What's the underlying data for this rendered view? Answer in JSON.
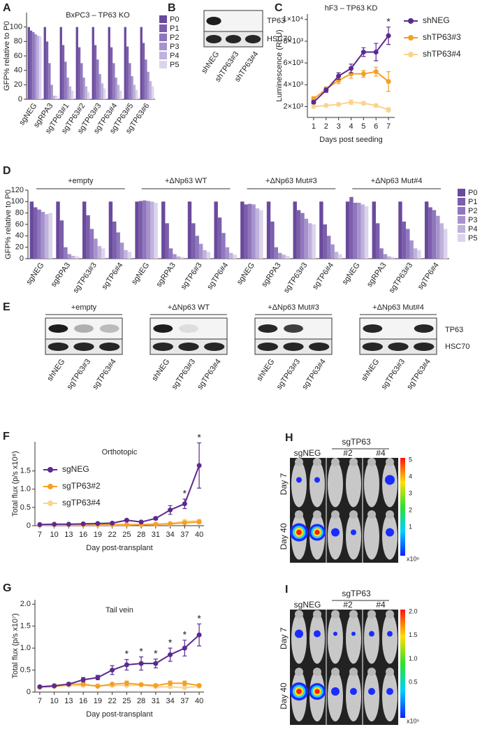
{
  "chart_data": [
    {
      "type": "bar",
      "panel": "A",
      "title": "BxPC3 – TP63 KO",
      "y_label": "GFP% relative to P0",
      "categories": [
        "sgNEG",
        "sgRPA3",
        "sgTP63#1",
        "sgTP63#2",
        "sgTP63#3",
        "sgTP63#4",
        "sgTP63#5",
        "sgTP63#6"
      ],
      "series": [
        {
          "name": "P0",
          "color": "#6a4a9c",
          "values": [
            100,
            100,
            100,
            100,
            100,
            100,
            100,
            100
          ]
        },
        {
          "name": "P1",
          "color": "#7b5eac",
          "values": [
            95,
            80,
            75,
            72,
            75,
            72,
            73,
            78
          ]
        },
        {
          "name": "P2",
          "color": "#8f76bd",
          "values": [
            93,
            50,
            52,
            50,
            55,
            50,
            50,
            55
          ]
        },
        {
          "name": "P3",
          "color": "#a693cc",
          "values": [
            90,
            20,
            30,
            30,
            35,
            30,
            32,
            38
          ]
        },
        {
          "name": "P4",
          "color": "#c0b2dc",
          "values": [
            88,
            5,
            18,
            18,
            22,
            20,
            20,
            25
          ]
        },
        {
          "name": "P5",
          "color": "#dcd4ec",
          "values": [
            87,
            5,
            12,
            10,
            15,
            12,
            13,
            18
          ]
        }
      ],
      "ylim": [
        0,
        120
      ],
      "yticks": [
        0,
        20,
        40,
        60,
        80,
        100
      ],
      "legend": "outside right"
    },
    {
      "type": "line",
      "panel": "C",
      "title": "hF3 – TP63 KD",
      "x_label": "Days post seeding",
      "y_label": "Luminescence (RLU)",
      "x": [
        1,
        2,
        3,
        4,
        5,
        6,
        7
      ],
      "series": [
        {
          "name": "shNEG",
          "color": "#5b2a91",
          "values": [
            2400,
            3500,
            4800,
            5500,
            7000,
            7000,
            8500
          ],
          "errors": [
            150,
            200,
            300,
            400,
            400,
            800,
            800
          ]
        },
        {
          "name": "shTP63#3",
          "color": "#f5a024",
          "values": [
            2700,
            3600,
            4400,
            5000,
            5000,
            5200,
            4300
          ],
          "errors": [
            200,
            200,
            300,
            400,
            300,
            400,
            900
          ]
        },
        {
          "name": "shTP63#4",
          "color": "#fbd38d",
          "values": [
            2000,
            2100,
            2200,
            2400,
            2300,
            2100,
            1700
          ],
          "errors": [
            100,
            150,
            150,
            200,
            150,
            150,
            200
          ]
        }
      ],
      "xlim": [
        0.5,
        7.5
      ],
      "xticks": [
        1,
        2,
        3,
        4,
        5,
        6,
        7
      ],
      "ylim": [
        1000,
        10500
      ],
      "yticks": [
        {
          "value": 2000,
          "label": "2×10³"
        },
        {
          "value": 4000,
          "label": "4×10³"
        },
        {
          "value": 6000,
          "label": "6×10³"
        },
        {
          "value": 8000,
          "label": "8×10³"
        },
        {
          "value": 10000,
          "label": "1×10⁴"
        }
      ],
      "annotations": [
        {
          "text": "*",
          "x": 7
        }
      ],
      "legend": "outside right"
    },
    {
      "type": "bar",
      "panel": "D",
      "y_label": "GFP% relative to P0",
      "groups": [
        "+empty",
        "+ΔNp63 WT",
        "+ΔNp63 Mut#3",
        "+ΔNp63 Mut#4"
      ],
      "categories": [
        "sgNEG",
        "sgRPA3",
        "sgTP63#3",
        "sgTP6#4",
        "sgNEG",
        "sgRPA3",
        "sgTP6#3",
        "sgTP6#4",
        "sgNEG",
        "sgRPA3",
        "sgTP63#3",
        "sgTP6#4",
        "sgNEG",
        "sgRPA3",
        "sgTP63#3",
        "sgTP6#4"
      ],
      "series": [
        {
          "name": "P0",
          "color": "#6a4a9c",
          "values": [
            100,
            100,
            100,
            100,
            100,
            100,
            100,
            100,
            100,
            100,
            100,
            100,
            100,
            100,
            100,
            100
          ]
        },
        {
          "name": "P1",
          "color": "#7b5eac",
          "values": [
            90,
            67,
            76,
            65,
            101,
            62,
            62,
            72,
            95,
            65,
            85,
            60,
            108,
            62,
            65,
            90
          ]
        },
        {
          "name": "P2",
          "color": "#8f76bd",
          "values": [
            86,
            20,
            52,
            46,
            102,
            18,
            40,
            45,
            96,
            20,
            80,
            40,
            98,
            18,
            52,
            85
          ]
        },
        {
          "name": "P3",
          "color": "#a693cc",
          "values": [
            82,
            8,
            35,
            28,
            101,
            8,
            26,
            20,
            95,
            10,
            70,
            25,
            98,
            8,
            32,
            75
          ]
        },
        {
          "name": "P4",
          "color": "#c0b2dc",
          "values": [
            78,
            5,
            22,
            15,
            100,
            4,
            15,
            10,
            88,
            7,
            62,
            12,
            95,
            4,
            18,
            62
          ]
        },
        {
          "name": "P5",
          "color": "#dcd4ec",
          "values": [
            80,
            4,
            18,
            12,
            98,
            3,
            12,
            7,
            85,
            5,
            60,
            8,
            92,
            3,
            15,
            52
          ]
        }
      ],
      "ylim": [
        0,
        120
      ],
      "yticks": [
        0,
        20,
        40,
        60,
        80,
        100,
        120
      ],
      "legend": "outside right"
    },
    {
      "type": "line",
      "panel": "F",
      "title": "Orthotopic",
      "x_label": "Day post-transplant",
      "y_label": "Total flux (p/s x10⁸)",
      "x": [
        7,
        10,
        13,
        16,
        19,
        22,
        25,
        28,
        31,
        34,
        37,
        40
      ],
      "series": [
        {
          "name": "sgNEG",
          "color": "#5b2a91",
          "values": [
            0.03,
            0.04,
            0.04,
            0.05,
            0.06,
            0.07,
            0.15,
            0.1,
            0.2,
            0.43,
            0.6,
            1.65
          ],
          "errors": [
            0.01,
            0.01,
            0.01,
            0.01,
            0.01,
            0.02,
            0.03,
            0.02,
            0.04,
            0.12,
            0.13,
            0.62
          ]
        },
        {
          "name": "sgTP63#2",
          "color": "#f5a024",
          "values": [
            0.02,
            0.03,
            0.03,
            0.03,
            0.03,
            0.03,
            0.03,
            0.03,
            0.04,
            0.05,
            0.08,
            0.1
          ],
          "errors": [
            0.01,
            0.01,
            0.01,
            0.01,
            0.01,
            0.01,
            0.01,
            0.01,
            0.01,
            0.02,
            0.03,
            0.04
          ]
        },
        {
          "name": "sgTP63#4",
          "color": "#fbd38d",
          "values": [
            0.01,
            0.02,
            0.02,
            0.02,
            0.02,
            0.02,
            0.02,
            0.03,
            0.04,
            0.06,
            0.12,
            0.13
          ],
          "errors": [
            0.01,
            0.01,
            0.01,
            0.01,
            0.01,
            0.01,
            0.01,
            0.01,
            0.02,
            0.02,
            0.04,
            0.05
          ]
        }
      ],
      "xlim": [
        6,
        41
      ],
      "xticks": [
        7,
        10,
        13,
        16,
        19,
        22,
        25,
        28,
        31,
        34,
        37,
        40
      ],
      "ylim": [
        0,
        2.3
      ],
      "yticks": [
        0,
        0.5,
        {
          "value": 1,
          "label": "1.0"
        },
        1.5
      ],
      "annotations": [
        {
          "text": "*",
          "x": 37
        },
        {
          "text": "*",
          "x": 40
        }
      ],
      "legend": "upper left"
    },
    {
      "type": "line",
      "panel": "G",
      "title": "Tail vein",
      "x_label": "Day post-transplant",
      "y_label": "Total flux (p/s x10⁷)",
      "x": [
        7,
        10,
        13,
        16,
        19,
        22,
        25,
        28,
        31,
        34,
        37,
        40
      ],
      "series": [
        {
          "name": "sgNEG",
          "color": "#5b2a91",
          "values": [
            0.12,
            0.14,
            0.18,
            0.28,
            0.33,
            0.5,
            0.62,
            0.65,
            0.65,
            0.85,
            1.0,
            1.3
          ],
          "errors": [
            0.02,
            0.02,
            0.03,
            0.05,
            0.05,
            0.1,
            0.12,
            0.15,
            0.1,
            0.15,
            0.18,
            0.25
          ]
        },
        {
          "name": "sgTP63#2",
          "color": "#f5a024",
          "values": [
            0.12,
            0.15,
            0.18,
            0.18,
            0.13,
            0.18,
            0.2,
            0.17,
            0.15,
            0.2,
            0.2,
            0.15
          ],
          "errors": [
            0.02,
            0.02,
            0.03,
            0.03,
            0.02,
            0.03,
            0.05,
            0.03,
            0.03,
            0.05,
            0.05,
            0.03
          ]
        },
        {
          "name": "sgTP63#4",
          "color": "#fbd38d",
          "values": [
            0.1,
            0.12,
            0.15,
            0.15,
            0.15,
            0.15,
            0.15,
            0.16,
            0.12,
            0.12,
            0.1,
            0.13
          ],
          "errors": [
            0.02,
            0.02,
            0.02,
            0.02,
            0.02,
            0.02,
            0.02,
            0.02,
            0.02,
            0.02,
            0.02,
            0.02
          ]
        }
      ],
      "xlim": [
        6,
        41
      ],
      "xticks": [
        7,
        10,
        13,
        16,
        19,
        22,
        25,
        28,
        31,
        34,
        37,
        40
      ],
      "ylim": [
        0,
        2.1
      ],
      "yticks": [
        0,
        0.5,
        {
          "value": 1,
          "label": "1.0"
        },
        1.5,
        {
          "value": 2,
          "label": "2.0"
        }
      ],
      "annotations": [
        {
          "text": "*",
          "x": 25
        },
        {
          "text": "*",
          "x": 28
        },
        {
          "text": "*",
          "x": 31
        },
        {
          "text": "*",
          "x": 34
        },
        {
          "text": "*",
          "x": 37
        },
        {
          "text": "*",
          "x": 40
        }
      ]
    }
  ],
  "blot_b": {
    "panel": "B",
    "lanes": [
      "shNEG",
      "shTP63#3",
      "shTP63#4"
    ],
    "bands": [
      "TP63",
      "HSC70"
    ]
  },
  "blots_e": {
    "panel": "E",
    "bands": [
      "TP63",
      "HSC70"
    ],
    "blots": [
      {
        "title": "+empty",
        "lanes": [
          "shNEG",
          "sgTP63#3",
          "sgTP63#4"
        ]
      },
      {
        "title": "+ΔNp63 WT",
        "lanes": [
          "shNEG",
          "sgTP63#3",
          "sgTP63#4"
        ]
      },
      {
        "title": "+ΔNp63 Mut#3",
        "lanes": [
          "shNEG",
          "sgTP63#3",
          "sgTP63#4"
        ]
      },
      {
        "title": "+ΔNp63 Mut#4",
        "lanes": [
          "shNEG",
          "sgTP63#3",
          "sgTP63#4"
        ]
      }
    ]
  },
  "imaging_h": {
    "panel": "H",
    "group": "sgTP63",
    "columns": [
      "sgNEG",
      "#2",
      "#4"
    ],
    "rows": [
      "Day 7",
      "Day 40"
    ],
    "colorbar_ticks": [
      "5",
      "4",
      "3",
      "2",
      "1"
    ],
    "colorbar_unit": "x10⁶"
  },
  "imaging_i": {
    "panel": "I",
    "group": "sgTP63",
    "columns": [
      "sgNEG",
      "#2",
      "#4"
    ],
    "rows": [
      "Day 7",
      "Day 40"
    ],
    "colorbar_ticks": [
      "2.0",
      "1.5",
      "1.0",
      "0.5"
    ],
    "colorbar_unit": "x10⁵"
  }
}
